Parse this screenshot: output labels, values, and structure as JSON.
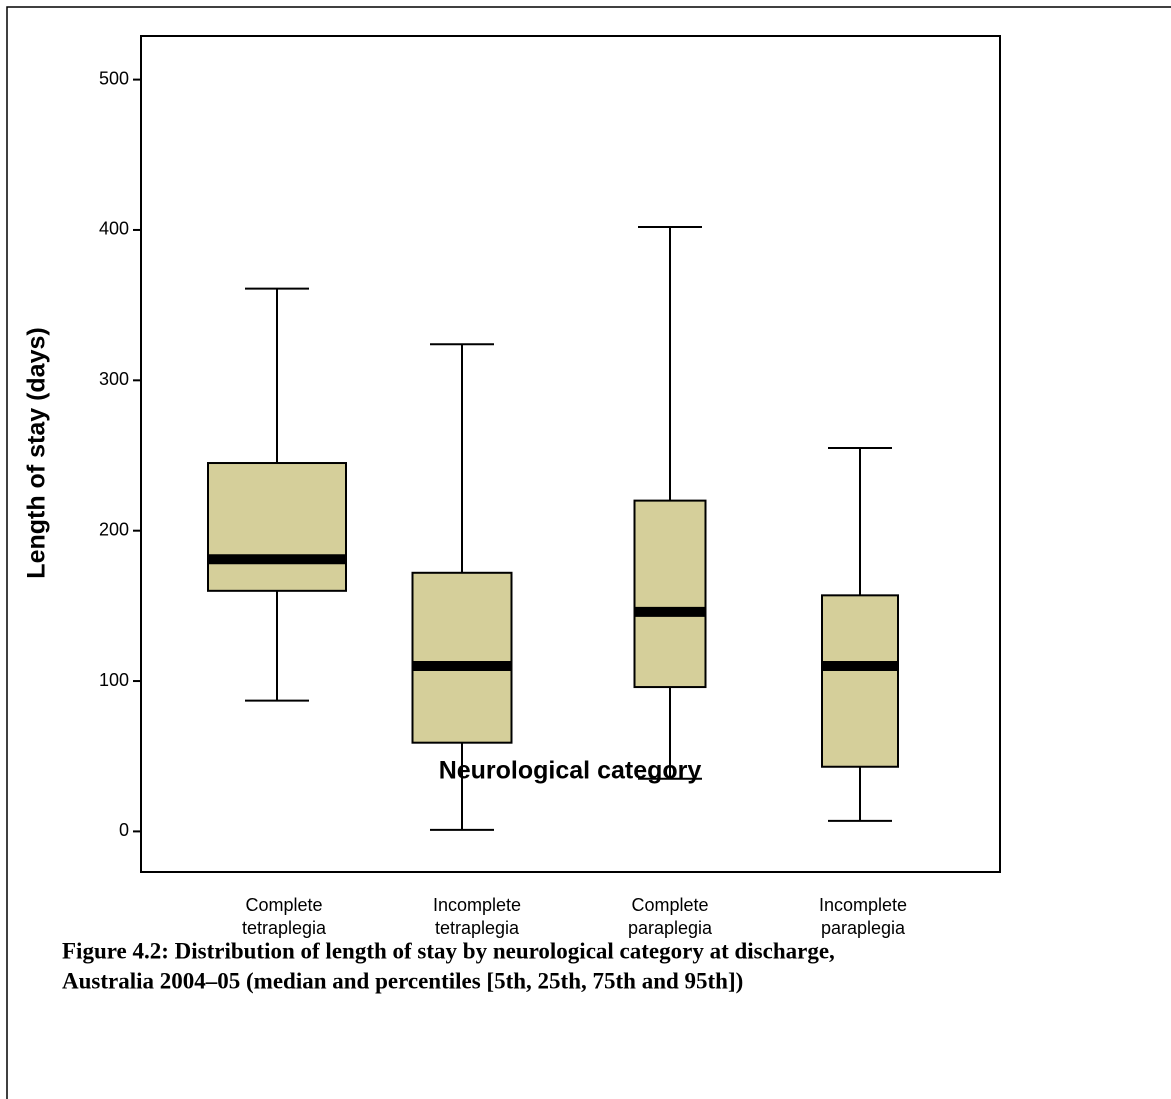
{
  "chart_data": {
    "type": "box",
    "x_label": "Neurological category",
    "y_label": "Length of stay (days)",
    "caption": [
      "Figure 4.2: Distribution of length of stay by neurological category at discharge,",
      "Australia 2004–05 (median and percentiles [5th, 25th, 75th and 95th])"
    ],
    "categories": [
      [
        "Complete",
        "tetraplegia"
      ],
      [
        "Incomplete",
        "tetraplegia"
      ],
      [
        "Complete",
        "paraplegia"
      ],
      [
        "Incomplete",
        "paraplegia"
      ]
    ],
    "boxes": [
      {
        "low": 87,
        "q1": 160,
        "median": 181,
        "q3": 245,
        "high": 361
      },
      {
        "low": 1,
        "q1": 59,
        "median": 110,
        "q3": 172,
        "high": 324
      },
      {
        "low": 35,
        "q1": 96,
        "median": 146,
        "q3": 220,
        "high": 402
      },
      {
        "low": 7,
        "q1": 43,
        "median": 110,
        "q3": 157,
        "high": 255
      }
    ],
    "color": "#d5cf9a",
    "ylim": [
      -27,
      529
    ],
    "yticks": [
      0,
      100,
      200,
      300,
      400,
      500
    ]
  }
}
